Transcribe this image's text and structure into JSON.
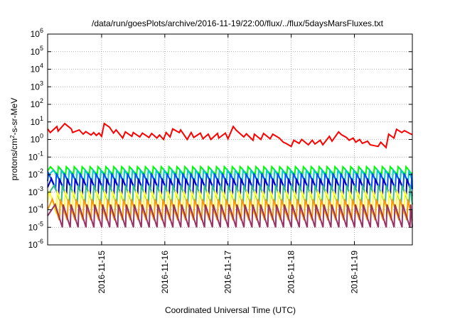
{
  "chart_data": {
    "type": "line",
    "title": "/data/run/goesPlots/archive/2016-11-19/22:00/flux/../flux/5daysMarsFluxes.txt",
    "xlabel": "Coordinated Universal Time (UTC)",
    "ylabel": {
      "pre": "protons/cm",
      "sup": "2",
      "post": "-s-sr-MeV"
    },
    "xlim": [
      "2016-11-14T03:30",
      "2016-11-19T22:00"
    ],
    "x_ticks": [
      "2016-11-15",
      "2016-11-16",
      "2016-11-17",
      "2016-11-18",
      "2016-11-19"
    ],
    "y_scale": "log",
    "ylim": [
      1e-06,
      1000000.0
    ],
    "y_ticks": [
      {
        "base": "10",
        "exp": "-6"
      },
      {
        "base": "10",
        "exp": "-5"
      },
      {
        "base": "10",
        "exp": "-4"
      },
      {
        "base": "10",
        "exp": "-3"
      },
      {
        "base": "10",
        "exp": "-2"
      },
      {
        "base": "10",
        "exp": "-1"
      },
      {
        "base": "10",
        "exp": "0"
      },
      {
        "base": "10",
        "exp": "1"
      },
      {
        "base": "10",
        "exp": "2"
      },
      {
        "base": "10",
        "exp": "3"
      },
      {
        "base": "10",
        "exp": "4"
      },
      {
        "base": "10",
        "exp": "5"
      },
      {
        "base": "10",
        "exp": "6"
      }
    ],
    "grid": true,
    "legend": "none",
    "sawtooth_period_hours": 3,
    "series": [
      {
        "color": "#ff0000",
        "x": [
          "2016-11-14T03:30",
          "2016-11-14T04:30",
          "2016-11-14T07:00",
          "2016-11-14T07:30",
          "2016-11-14T10:00",
          "2016-11-14T11:00",
          "2016-11-14T12:30",
          "2016-11-14T13:00",
          "2016-11-14T15:30",
          "2016-11-14T17:00",
          "2016-11-14T18:00",
          "2016-11-14T20:00",
          "2016-11-14T21:00",
          "2016-11-14T22:00",
          "2016-11-14T23:00",
          "2016-11-15T00:00",
          "2016-11-15T01:00",
          "2016-11-15T03:00",
          "2016-11-15T04:30",
          "2016-11-15T05:30",
          "2016-11-15T08:00",
          "2016-11-15T09:00",
          "2016-11-15T11:30",
          "2016-11-15T12:00",
          "2016-11-15T14:30",
          "2016-11-15T15:30",
          "2016-11-15T18:00",
          "2016-11-15T19:00",
          "2016-11-15T21:00",
          "2016-11-15T22:00",
          "2016-11-15T23:30",
          "2016-11-16T00:30",
          "2016-11-16T02:00",
          "2016-11-16T03:00",
          "2016-11-16T05:30",
          "2016-11-16T06:00",
          "2016-11-16T08:30",
          "2016-11-16T10:00",
          "2016-11-16T11:00",
          "2016-11-16T13:30",
          "2016-11-16T14:30",
          "2016-11-16T16:30",
          "2016-11-16T17:30",
          "2016-11-16T20:00",
          "2016-11-16T20:30",
          "2016-11-16T23:00",
          "2016-11-17T00:00",
          "2016-11-17T02:00",
          "2016-11-17T03:00",
          "2016-11-17T06:00",
          "2016-11-17T07:00",
          "2016-11-17T09:30",
          "2016-11-17T10:00",
          "2016-11-17T12:30",
          "2016-11-17T13:30",
          "2016-11-17T16:00",
          "2016-11-17T17:00",
          "2016-11-17T19:30",
          "2016-11-17T21:00",
          "2016-11-17T22:00",
          "2016-11-18T00:00",
          "2016-11-18T01:00",
          "2016-11-18T03:00",
          "2016-11-18T04:00",
          "2016-11-18T06:30",
          "2016-11-18T08:00",
          "2016-11-18T09:00",
          "2016-11-18T11:00",
          "2016-11-18T12:00",
          "2016-11-18T14:30",
          "2016-11-18T15:30",
          "2016-11-18T18:00",
          "2016-11-18T19:00",
          "2016-11-18T21:00",
          "2016-11-18T22:00",
          "2016-11-18T23:30",
          "2016-11-19T00:30",
          "2016-11-19T02:00",
          "2016-11-19T03:00",
          "2016-11-19T05:00",
          "2016-11-19T06:00",
          "2016-11-19T09:00",
          "2016-11-19T10:00",
          "2016-11-19T12:00",
          "2016-11-19T13:00",
          "2016-11-19T15:00",
          "2016-11-19T16:00",
          "2016-11-19T18:00",
          "2016-11-19T19:00",
          "2016-11-19T21:00",
          "2016-11-19T22:00"
        ],
        "y": [
          4.0,
          2.5,
          5.5,
          3.0,
          8.0,
          6.0,
          4.0,
          2.5,
          3.5,
          2.0,
          2.8,
          1.8,
          2.5,
          1.7,
          2.3,
          1.5,
          8.0,
          5.0,
          2.3,
          3.5,
          1.2,
          2.7,
          1.5,
          2.5,
          1.4,
          2.3,
          1.3,
          2.2,
          1.2,
          1.8,
          1.0,
          2.5,
          1.4,
          4.0,
          2.5,
          3.5,
          1.0,
          2.5,
          1.3,
          2.3,
          1.1,
          2.0,
          1.0,
          2.2,
          1.2,
          2.3,
          1.1,
          5.5,
          3.5,
          1.4,
          2.1,
          0.9,
          2.0,
          1.0,
          2.2,
          1.1,
          2.0,
          1.2,
          0.7,
          0.6,
          0.4,
          0.9,
          0.6,
          1.0,
          0.5,
          0.9,
          0.55,
          0.9,
          0.5,
          1.5,
          0.8,
          2.7,
          1.9,
          1.3,
          0.9,
          1.2,
          0.7,
          1.0,
          0.6,
          0.8,
          0.5,
          0.4,
          0.7,
          0.35,
          2.0,
          1.2,
          3.8,
          2.5,
          3.2,
          2.2,
          1.9
        ]
      },
      {
        "color": "#00ff00",
        "peak": 0.028,
        "trough": 0.01
      },
      {
        "color": "#00cccc",
        "peak": 0.018,
        "trough": 0.004
      },
      {
        "color": "#0055ff",
        "peak": 0.012,
        "trough": 0.0015
      },
      {
        "color": "#0000cc",
        "peak": 0.006,
        "trough": 0.0006
      },
      {
        "color": "#33bb88",
        "peak": 0.0025,
        "trough": 0.0002
      },
      {
        "color": "#ffff33",
        "peak": 0.0012,
        "trough": 6e-05
      },
      {
        "color": "#ff9900",
        "peak": 0.0004,
        "trough": 2.5e-05
      },
      {
        "color": "#993366",
        "peak": 0.0002,
        "trough": 1e-05
      }
    ]
  }
}
